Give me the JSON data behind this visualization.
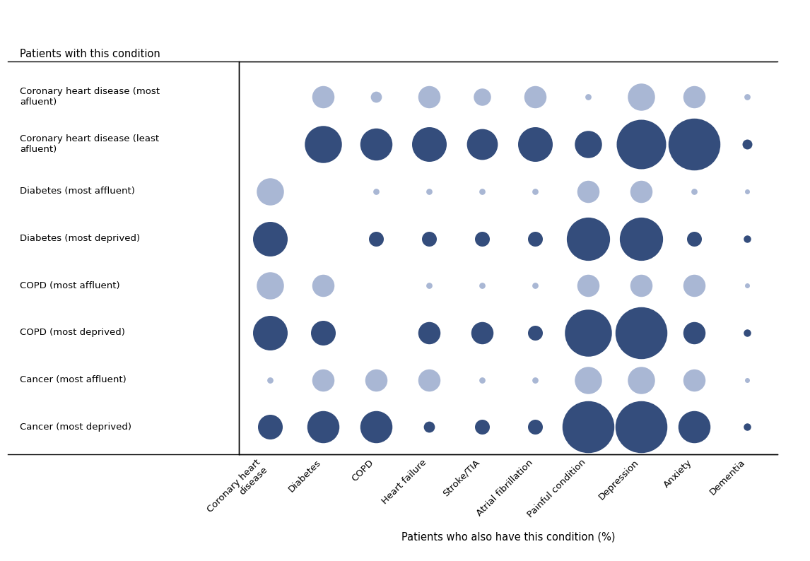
{
  "x_labels": [
    "Coronary heart\ndisease",
    "Diabetes",
    "COPD",
    "Heart failure",
    "Stroke/TIA",
    "Atrial fibrillation",
    "Painful condition",
    "Depression",
    "Anxiety",
    "Dementia"
  ],
  "y_labels": [
    "Coronary heart disease (most\nafluent)",
    "Coronary heart disease (least\nafluent)",
    "Diabetes (most affluent)",
    "Diabetes (most deprived)",
    "COPD (most affluent)",
    "COPD (most deprived)",
    "Cancer (most affluent)",
    "Cancer (most deprived)"
  ],
  "color_affluent": "#a0afd0",
  "color_deprived": "#1e3a6e",
  "bubble_values": [
    [
      0,
      18,
      9,
      18,
      14,
      18,
      5,
      22,
      18,
      5
    ],
    [
      0,
      30,
      26,
      28,
      25,
      28,
      22,
      40,
      42,
      8
    ],
    [
      22,
      0,
      5,
      5,
      5,
      5,
      18,
      18,
      5,
      4
    ],
    [
      28,
      0,
      12,
      12,
      12,
      12,
      35,
      35,
      12,
      6
    ],
    [
      22,
      18,
      0,
      5,
      5,
      5,
      18,
      18,
      18,
      4
    ],
    [
      28,
      20,
      0,
      18,
      18,
      12,
      38,
      42,
      18,
      6
    ],
    [
      5,
      18,
      18,
      18,
      5,
      5,
      22,
      22,
      18,
      4
    ],
    [
      20,
      26,
      26,
      9,
      12,
      12,
      42,
      42,
      26,
      6
    ]
  ],
  "row_types": [
    "affluent",
    "deprived",
    "affluent",
    "deprived",
    "affluent",
    "deprived",
    "affluent",
    "deprived"
  ],
  "xlabel": "Patients who also have this condition (%)",
  "header_text": "Patients with this condition",
  "figsize": [
    11.46,
    7.94
  ],
  "dpi": 100,
  "max_bubble_size": 2800,
  "max_val": 42
}
